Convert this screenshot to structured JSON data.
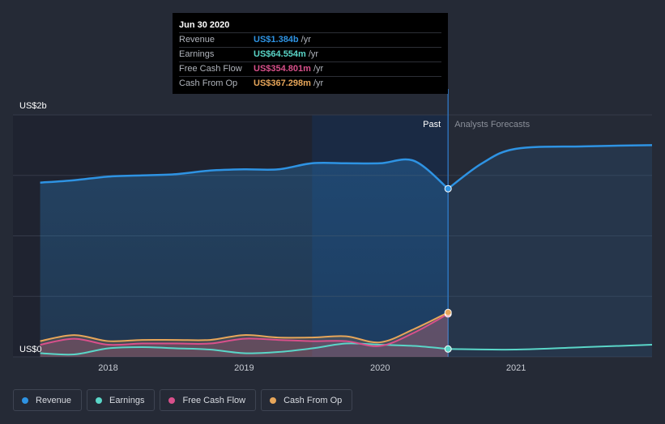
{
  "tooltip": {
    "date": "Jun 30 2020",
    "rows": [
      {
        "label": "Revenue",
        "value": "US$1.384b",
        "unit": "/yr",
        "color": "#2e93e3"
      },
      {
        "label": "Earnings",
        "value": "US$64.554m",
        "unit": "/yr",
        "color": "#5ad6c8"
      },
      {
        "label": "Free Cash Flow",
        "value": "US$354.801m",
        "unit": "/yr",
        "color": "#d9508b"
      },
      {
        "label": "Cash From Op",
        "value": "US$367.298m",
        "unit": "/yr",
        "color": "#e7a65a"
      }
    ]
  },
  "labels": {
    "past": "Past",
    "forecast": "Analysts Forecasts"
  },
  "legend": [
    {
      "label": "Revenue",
      "color": "#2e93e3"
    },
    {
      "label": "Earnings",
      "color": "#5ad6c8"
    },
    {
      "label": "Free Cash Flow",
      "color": "#d9508b"
    },
    {
      "label": "Cash From Op",
      "color": "#e7a65a"
    }
  ],
  "chart_data": {
    "type": "line",
    "ylim": [
      0,
      2.0
    ],
    "y_unit": "US$ billions",
    "y_tick_labels": [
      {
        "value": 2.0,
        "label": "US$2b"
      },
      {
        "value": 0,
        "label": "US$0"
      }
    ],
    "x_ticks": [
      {
        "value": 2018.0,
        "label": "2018"
      },
      {
        "value": 2019.0,
        "label": "2019"
      },
      {
        "value": 2020.0,
        "label": "2020"
      },
      {
        "value": 2021.0,
        "label": "2021"
      }
    ],
    "xlim": [
      2017.3,
      2022.0
    ],
    "past_end": 2020.5,
    "highlight_start": 2019.5,
    "grid": true,
    "legend_position": "bottom",
    "series": [
      {
        "name": "Revenue",
        "color": "#2e93e3",
        "past": [
          [
            2017.5,
            1.44
          ],
          [
            2017.75,
            1.46
          ],
          [
            2018.0,
            1.49
          ],
          [
            2018.25,
            1.5
          ],
          [
            2018.5,
            1.51
          ],
          [
            2018.75,
            1.54
          ],
          [
            2019.0,
            1.55
          ],
          [
            2019.25,
            1.55
          ],
          [
            2019.5,
            1.6
          ],
          [
            2019.75,
            1.6
          ],
          [
            2020.0,
            1.6
          ],
          [
            2020.25,
            1.62
          ],
          [
            2020.5,
            1.39
          ]
        ],
        "forecast": [
          [
            2020.5,
            1.39
          ],
          [
            2020.75,
            1.6
          ],
          [
            2021.0,
            1.72
          ],
          [
            2021.5,
            1.74
          ],
          [
            2022.0,
            1.75
          ]
        ]
      },
      {
        "name": "Earnings",
        "color": "#5ad6c8",
        "past": [
          [
            2017.5,
            0.03
          ],
          [
            2017.75,
            0.02
          ],
          [
            2018.0,
            0.07
          ],
          [
            2018.25,
            0.08
          ],
          [
            2018.5,
            0.07
          ],
          [
            2018.75,
            0.06
          ],
          [
            2019.0,
            0.03
          ],
          [
            2019.25,
            0.04
          ],
          [
            2019.5,
            0.07
          ],
          [
            2019.75,
            0.11
          ],
          [
            2020.0,
            0.1
          ],
          [
            2020.25,
            0.09
          ],
          [
            2020.5,
            0.065
          ]
        ],
        "forecast": [
          [
            2020.5,
            0.065
          ],
          [
            2021.0,
            0.06
          ],
          [
            2021.5,
            0.08
          ],
          [
            2022.0,
            0.1
          ]
        ]
      },
      {
        "name": "Free Cash Flow",
        "color": "#d9508b",
        "past": [
          [
            2017.5,
            0.1
          ],
          [
            2017.75,
            0.15
          ],
          [
            2018.0,
            0.1
          ],
          [
            2018.25,
            0.11
          ],
          [
            2018.5,
            0.11
          ],
          [
            2018.75,
            0.11
          ],
          [
            2019.0,
            0.15
          ],
          [
            2019.25,
            0.14
          ],
          [
            2019.5,
            0.13
          ],
          [
            2019.75,
            0.13
          ],
          [
            2020.0,
            0.09
          ],
          [
            2020.25,
            0.2
          ],
          [
            2020.5,
            0.355
          ]
        ],
        "forecast": []
      },
      {
        "name": "Cash From Op",
        "color": "#e7a65a",
        "past": [
          [
            2017.5,
            0.13
          ],
          [
            2017.75,
            0.18
          ],
          [
            2018.0,
            0.13
          ],
          [
            2018.25,
            0.14
          ],
          [
            2018.5,
            0.14
          ],
          [
            2018.75,
            0.14
          ],
          [
            2019.0,
            0.18
          ],
          [
            2019.25,
            0.16
          ],
          [
            2019.5,
            0.16
          ],
          [
            2019.75,
            0.17
          ],
          [
            2020.0,
            0.12
          ],
          [
            2020.25,
            0.23
          ],
          [
            2020.5,
            0.367
          ]
        ],
        "forecast": []
      }
    ]
  }
}
